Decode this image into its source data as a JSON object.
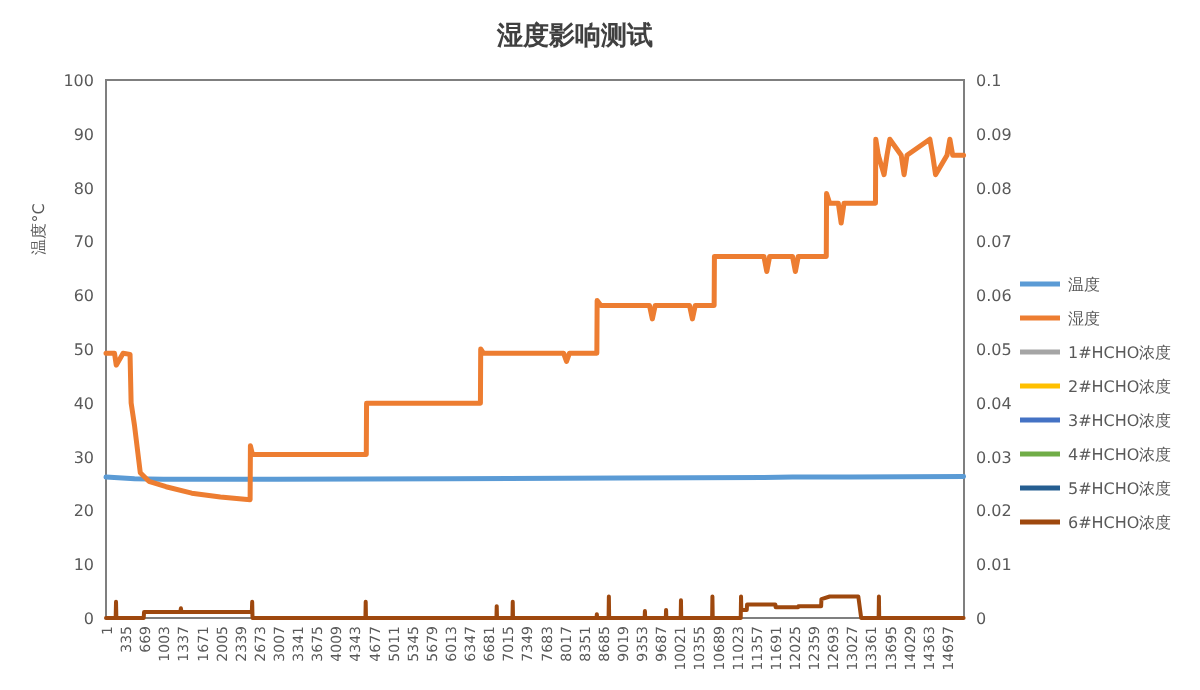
{
  "chart_data": {
    "type": "line",
    "title": "湿度影响测试",
    "ylabel": "温度°C",
    "xlim": [
      1,
      14997
    ],
    "xticks": [
      1,
      335,
      669,
      1003,
      1337,
      1671,
      2005,
      2339,
      2673,
      3007,
      3341,
      3675,
      4009,
      4343,
      4677,
      5011,
      5345,
      5679,
      6013,
      6347,
      6681,
      7015,
      7349,
      7683,
      8017,
      8351,
      8685,
      9019,
      9353,
      9687,
      10021,
      10355,
      10689,
      11023,
      11357,
      11691,
      12025,
      12359,
      12693,
      13027,
      13361,
      13695,
      14029,
      14363,
      14697
    ],
    "ylim": [
      0,
      100
    ],
    "yticks": [
      0,
      10,
      20,
      30,
      40,
      50,
      60,
      70,
      80,
      90,
      100
    ],
    "y2lim": [
      0,
      0.1
    ],
    "y2ticks": [
      0,
      0.01,
      0.02,
      0.03,
      0.04,
      0.05,
      0.06,
      0.07,
      0.08,
      0.09,
      0.1
    ],
    "legend": "right",
    "series": [
      {
        "name": "温度",
        "color": "#5b9bd5",
        "x": [
          1,
          500,
          1000,
          3000,
          6000,
          9000,
          11500,
          12000,
          13000,
          14990
        ],
        "values": [
          26.2,
          25.9,
          25.8,
          25.8,
          25.9,
          26,
          26.1,
          26.2,
          26.2,
          26.3
        ]
      },
      {
        "name": "湿度",
        "color": "#ed7d31",
        "x": [
          1,
          150,
          180,
          300,
          421,
          440,
          500,
          600,
          750,
          1050,
          1500,
          2000,
          2520,
          2525,
          2560,
          3000,
          4000,
          4550,
          4555,
          4600,
          5500,
          6545,
          6550,
          6600,
          8000,
          8050,
          8100,
          8580,
          8585,
          8650,
          9500,
          9550,
          9600,
          10200,
          10250,
          10300,
          10630,
          10635,
          10700,
          11500,
          11550,
          11600,
          12000,
          12050,
          12100,
          12590,
          12595,
          12650,
          12800,
          12850,
          12900,
          13450,
          13455,
          13500,
          13600,
          13650,
          13700,
          13900,
          13950,
          14000,
          14400,
          14450,
          14500,
          14700,
          14750,
          14800,
          14990
        ],
        "values": [
          49.2,
          49.2,
          47,
          49.2,
          49,
          40,
          35.7,
          27,
          25.4,
          24.4,
          23.2,
          22.5,
          22,
          32,
          30.4,
          30.4,
          30.4,
          30.4,
          39.9,
          39.9,
          39.9,
          39.9,
          50,
          49.2,
          49.2,
          47.7,
          49.2,
          49.2,
          59,
          58.1,
          58.1,
          55.6,
          58.1,
          58.1,
          55.6,
          58.1,
          58.1,
          67.2,
          67.2,
          67.2,
          64.4,
          67.2,
          67.2,
          64.4,
          67.2,
          67.2,
          78.9,
          77.1,
          77.1,
          73.4,
          77.1,
          77.1,
          89,
          86,
          82.4,
          86,
          89,
          86,
          82.4,
          86,
          89,
          86,
          82.4,
          86,
          89,
          86,
          86
        ]
      },
      {
        "name": "1#HCHO浓度",
        "color": "#a5a5a5",
        "axis": "y2"
      },
      {
        "name": "2#HCHO浓度",
        "color": "#ffc000",
        "axis": "y2"
      },
      {
        "name": "3#HCHO浓度",
        "color": "#4472c4",
        "axis": "y2"
      },
      {
        "name": "4#HCHO浓度",
        "color": "#70ad47",
        "axis": "y2"
      },
      {
        "name": "5#HCHO浓度",
        "color": "#255e91",
        "axis": "y2"
      },
      {
        "name": "6#HCHO浓度",
        "color": "#9e480e",
        "axis": "y2",
        "x": [
          1,
          170,
          176,
          182,
          660,
          666,
          1300,
          1310,
          1320,
          2550,
          2556,
          2562,
          4535,
          4540,
          4545,
          6825,
          6830,
          6835,
          7105,
          7110,
          7115,
          8575,
          8580,
          8585,
          8785,
          8790,
          8795,
          9415,
          9420,
          9425,
          9785,
          9790,
          9795,
          10045,
          10050,
          10055,
          10595,
          10600,
          10605,
          11095,
          11100,
          11105,
          11200,
          11205,
          11700,
          11705,
          12100,
          12105,
          12500,
          12505,
          12650,
          12700,
          13150,
          13200,
          13505,
          13510,
          13515,
          14990
        ],
        "values": [
          0,
          0,
          0.003,
          0,
          0,
          0.0011,
          0.0011,
          0.0018,
          0.0011,
          0.0011,
          0.003,
          0,
          0,
          0.003,
          0,
          0,
          0.0022,
          0,
          0,
          0.003,
          0,
          0,
          0.0007,
          0,
          0,
          0.004,
          0,
          0,
          0.0013,
          0,
          0,
          0.0015,
          0,
          0,
          0.0033,
          0,
          0,
          0.004,
          0,
          0,
          0.004,
          0.0015,
          0.0015,
          0.0025,
          0.0025,
          0.002,
          0.002,
          0.0022,
          0.0022,
          0.0035,
          0.004,
          0.004,
          0.004,
          0,
          0,
          0.004,
          0,
          0
        ]
      }
    ]
  }
}
